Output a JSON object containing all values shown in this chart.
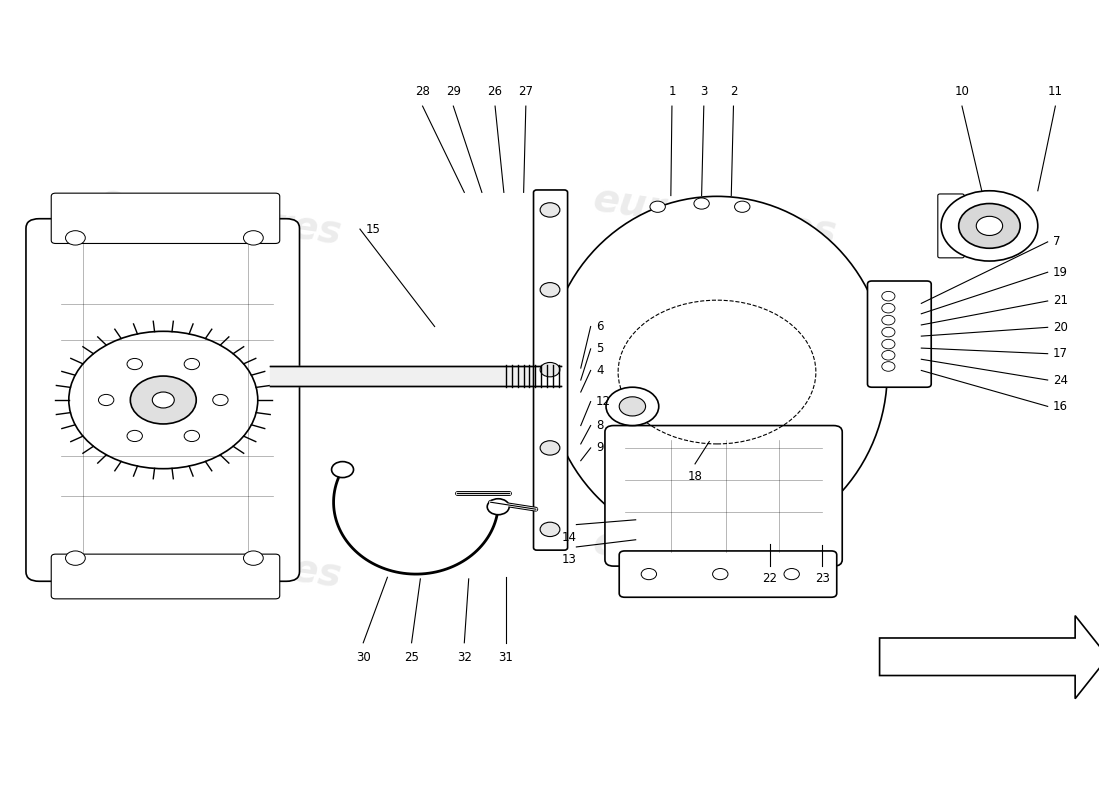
{
  "bg_color": "#ffffff",
  "line_color": "#000000",
  "watermark_color": "#dddddd",
  "watermark_text": "eurospares",
  "top_labels": [
    {
      "num": "28",
      "xp": 0.422,
      "yp": 0.76,
      "xl": 0.384,
      "yl": 0.878
    },
    {
      "num": "29",
      "xp": 0.438,
      "yp": 0.76,
      "xl": 0.412,
      "yl": 0.878
    },
    {
      "num": "26",
      "xp": 0.458,
      "yp": 0.76,
      "xl": 0.45,
      "yl": 0.878
    },
    {
      "num": "27",
      "xp": 0.476,
      "yp": 0.76,
      "xl": 0.478,
      "yl": 0.878
    },
    {
      "num": "1",
      "xp": 0.61,
      "yp": 0.756,
      "xl": 0.611,
      "yl": 0.878
    },
    {
      "num": "3",
      "xp": 0.638,
      "yp": 0.756,
      "xl": 0.64,
      "yl": 0.878
    },
    {
      "num": "2",
      "xp": 0.665,
      "yp": 0.756,
      "xl": 0.667,
      "yl": 0.878
    },
    {
      "num": "10",
      "xp": 0.893,
      "yp": 0.762,
      "xl": 0.875,
      "yl": 0.878
    },
    {
      "num": "11",
      "xp": 0.944,
      "yp": 0.762,
      "xl": 0.96,
      "yl": 0.878
    }
  ],
  "right_labels": [
    {
      "num": "7",
      "xp": 0.838,
      "yp": 0.621,
      "xl": 0.958,
      "yl": 0.698
    },
    {
      "num": "19",
      "xp": 0.838,
      "yp": 0.608,
      "xl": 0.958,
      "yl": 0.66
    },
    {
      "num": "21",
      "xp": 0.838,
      "yp": 0.594,
      "xl": 0.958,
      "yl": 0.624
    },
    {
      "num": "20",
      "xp": 0.838,
      "yp": 0.58,
      "xl": 0.958,
      "yl": 0.591
    },
    {
      "num": "17",
      "xp": 0.838,
      "yp": 0.565,
      "xl": 0.958,
      "yl": 0.558
    },
    {
      "num": "24",
      "xp": 0.838,
      "yp": 0.551,
      "xl": 0.958,
      "yl": 0.525
    },
    {
      "num": "16",
      "xp": 0.838,
      "yp": 0.537,
      "xl": 0.958,
      "yl": 0.492
    }
  ],
  "mid_labels": [
    {
      "num": "15",
      "xp": 0.395,
      "yp": 0.592,
      "xl": 0.332,
      "yl": 0.714
    },
    {
      "num": "6",
      "xp": 0.528,
      "yp": 0.54,
      "xl": 0.542,
      "yl": 0.592
    },
    {
      "num": "5",
      "xp": 0.528,
      "yp": 0.525,
      "xl": 0.542,
      "yl": 0.564
    },
    {
      "num": "4",
      "xp": 0.528,
      "yp": 0.51,
      "xl": 0.542,
      "yl": 0.537
    },
    {
      "num": "12",
      "xp": 0.528,
      "yp": 0.468,
      "xl": 0.542,
      "yl": 0.498
    },
    {
      "num": "8",
      "xp": 0.528,
      "yp": 0.445,
      "xl": 0.542,
      "yl": 0.468
    },
    {
      "num": "9",
      "xp": 0.528,
      "yp": 0.424,
      "xl": 0.542,
      "yl": 0.44
    }
  ],
  "bot_labels": [
    {
      "num": "30",
      "xp": 0.352,
      "yp": 0.278,
      "xl": 0.33,
      "yl": 0.186
    },
    {
      "num": "25",
      "xp": 0.382,
      "yp": 0.276,
      "xl": 0.374,
      "yl": 0.186
    },
    {
      "num": "32",
      "xp": 0.426,
      "yp": 0.276,
      "xl": 0.422,
      "yl": 0.186
    },
    {
      "num": "31",
      "xp": 0.46,
      "yp": 0.278,
      "xl": 0.46,
      "yl": 0.186
    }
  ],
  "other_labels": [
    {
      "num": "14",
      "xp": 0.578,
      "yp": 0.35,
      "xl": 0.524,
      "yl": 0.336,
      "ha": "right"
    },
    {
      "num": "13",
      "xp": 0.578,
      "yp": 0.325,
      "xl": 0.524,
      "yl": 0.308,
      "ha": "right"
    },
    {
      "num": "18",
      "xp": 0.645,
      "yp": 0.448,
      "xl": 0.632,
      "yl": 0.412,
      "ha": "center"
    },
    {
      "num": "22",
      "xp": 0.7,
      "yp": 0.32,
      "xl": 0.7,
      "yl": 0.284,
      "ha": "center"
    },
    {
      "num": "23",
      "xp": 0.748,
      "yp": 0.318,
      "xl": 0.748,
      "yl": 0.284,
      "ha": "center"
    }
  ]
}
